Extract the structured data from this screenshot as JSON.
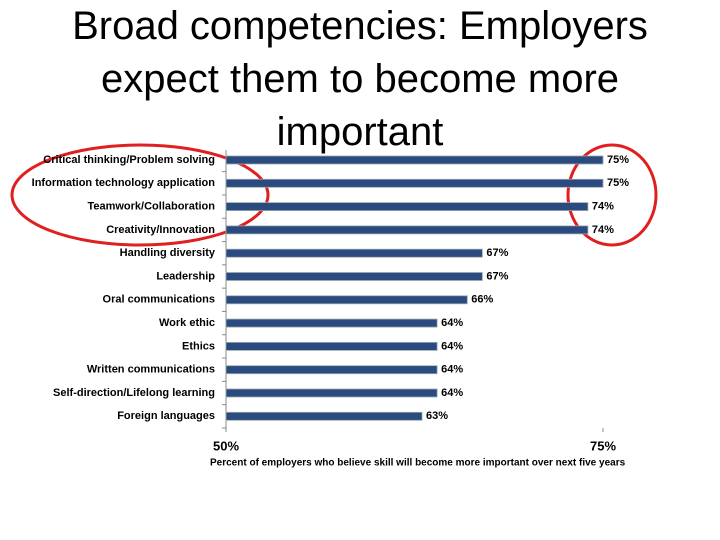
{
  "chart_data": {
    "type": "hbar",
    "title": "Broad competencies: Employers expect them to become more important",
    "categories": [
      "Critical thinking/Problem solving",
      "Information technology application",
      "Teamwork/Collaboration",
      "Creativity/Innovation",
      "Handling diversity",
      "Leadership",
      "Oral communications",
      "Work ethic",
      "Ethics",
      "Written communications",
      "Self-direction/Lifelong learning",
      "Foreign languages"
    ],
    "values": [
      75,
      75,
      74,
      74,
      67,
      67,
      66,
      64,
      64,
      64,
      64,
      63
    ],
    "value_labels": [
      "75%",
      "75%",
      "74%",
      "74%",
      "67%",
      "67%",
      "66%",
      "64%",
      "64%",
      "64%",
      "64%",
      "63%"
    ],
    "color": "#2b4a80",
    "xlim": [
      50,
      75
    ],
    "xticks": [
      {
        "value": 50,
        "label": "50%"
      },
      {
        "value": 75,
        "label": "75%"
      }
    ],
    "x_label": "Percent of employers who believe skill will become more important  over next five years"
  }
}
